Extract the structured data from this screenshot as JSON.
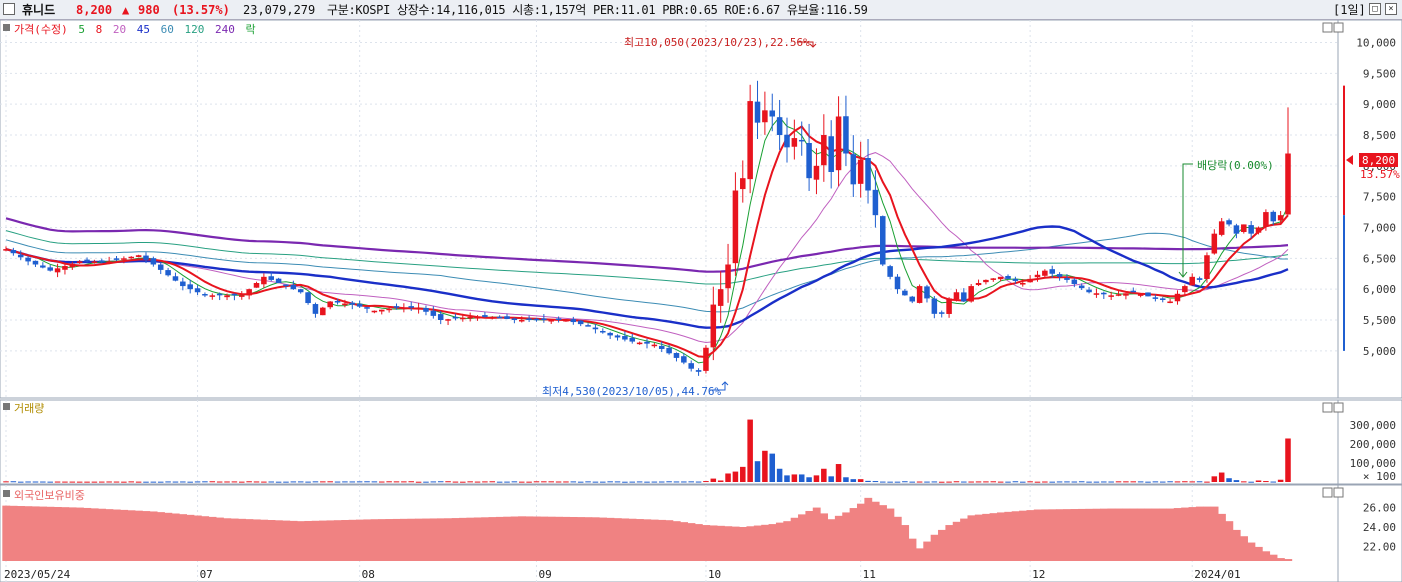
{
  "header": {
    "name": "휴니드",
    "price": "8,200",
    "arrow": "▲",
    "change": "980",
    "change_pct": "(13.57%)",
    "volume": "23,079,279",
    "info": "구분:KOSPI 상장수:14,116,015 시총:1,157억 PER:11.01 PBR:0.65 ROE:6.67 유보율:116.59",
    "period": "[1일]"
  },
  "colors": {
    "up": "#e8141e",
    "down": "#1f5fd0",
    "ma5": "#19a032",
    "ma20": "#c060c0",
    "ma45": "#1a2fc8",
    "ma240": "#7a28b0",
    "foreign": "#f08282"
  },
  "price_legend": [
    {
      "label": "가격(수정)",
      "color": "#e8141e"
    },
    {
      "label": "5",
      "color": "#19a032"
    },
    {
      "label": "8",
      "color": "#e8141e"
    },
    {
      "label": "20",
      "color": "#c060c0"
    },
    {
      "label": "45",
      "color": "#1a2fc8"
    },
    {
      "label": "60",
      "color": "#3c8cb4"
    },
    {
      "label": "120",
      "color": "#28a082"
    },
    {
      "label": "240",
      "color": "#7a28b0"
    },
    {
      "label": "락",
      "color": "#19a032"
    }
  ],
  "annotations": {
    "high": "최고10,050(2023/10/23),22.56%",
    "low": "최저4,530(2023/10/05),44.76%",
    "dividend": "배당락(0.00%)",
    "last_price": "8,200",
    "last_pct": "13.57%"
  },
  "volume_legend": "거래량",
  "foreign_legend": "외국인보유비중",
  "chart_data": [
    {
      "type": "candlestick",
      "title": "휴니드",
      "y_ticks": [
        5000,
        5500,
        6000,
        6500,
        7000,
        7500,
        8000,
        8500,
        9000,
        9500,
        10000
      ],
      "y_tick_labels": [
        "5,000",
        "5,500",
        "6,000",
        "6,500",
        "7,000",
        "7,500",
        "8,000",
        "8,500",
        "9,000",
        "9,500",
        "10,000"
      ],
      "ylim": [
        4300,
        10300
      ],
      "x_labels": [
        "2023/05/24",
        "07",
        "08",
        "09",
        "10",
        "11",
        "12",
        "2024/01"
      ],
      "x_label_index": [
        0,
        26,
        48,
        72,
        95,
        116,
        139,
        161
      ],
      "anchors_close": [
        [
          0,
          6650
        ],
        [
          3,
          6450
        ],
        [
          6,
          6300
        ],
        [
          10,
          6450
        ],
        [
          14,
          6450
        ],
        [
          18,
          6550
        ],
        [
          20,
          6400
        ],
        [
          24,
          6050
        ],
        [
          27,
          5900
        ],
        [
          29,
          5900
        ],
        [
          32,
          5900
        ],
        [
          35,
          6200
        ],
        [
          38,
          6050
        ],
        [
          40,
          5950
        ],
        [
          42,
          5600
        ],
        [
          44,
          5800
        ],
        [
          47,
          5750
        ],
        [
          50,
          5650
        ],
        [
          53,
          5700
        ],
        [
          56,
          5700
        ],
        [
          59,
          5500
        ],
        [
          63,
          5550
        ],
        [
          66,
          5550
        ],
        [
          69,
          5500
        ],
        [
          72,
          5500
        ],
        [
          76,
          5500
        ],
        [
          79,
          5400
        ],
        [
          82,
          5250
        ],
        [
          85,
          5150
        ],
        [
          88,
          5100
        ],
        [
          90,
          4960
        ],
        [
          92,
          4810
        ],
        [
          93,
          4710
        ],
        [
          94,
          4660
        ],
        [
          95,
          5050
        ],
        [
          96,
          5750
        ],
        [
          97,
          6000
        ],
        [
          98,
          6400
        ],
        [
          99,
          7600
        ],
        [
          100,
          7800
        ],
        [
          101,
          9050
        ],
        [
          102,
          8700
        ],
        [
          103,
          8900
        ],
        [
          104,
          8800
        ],
        [
          105,
          8500
        ],
        [
          106,
          8300
        ],
        [
          107,
          8450
        ],
        [
          108,
          8400
        ],
        [
          109,
          7800
        ],
        [
          110,
          8000
        ],
        [
          111,
          8500
        ],
        [
          112,
          7900
        ],
        [
          113,
          8800
        ],
        [
          114,
          8200
        ],
        [
          115,
          7700
        ],
        [
          116,
          8100
        ],
        [
          117,
          7600
        ],
        [
          118,
          7200
        ],
        [
          119,
          6400
        ],
        [
          120,
          6200
        ],
        [
          121,
          6000
        ],
        [
          122,
          5900
        ],
        [
          123,
          5800
        ],
        [
          124,
          6050
        ],
        [
          125,
          5850
        ],
        [
          126,
          5600
        ],
        [
          127,
          5600
        ],
        [
          128,
          5850
        ],
        [
          129,
          5950
        ],
        [
          130,
          5800
        ],
        [
          131,
          6050
        ],
        [
          133,
          6150
        ],
        [
          135,
          6200
        ],
        [
          138,
          6100
        ],
        [
          141,
          6300
        ],
        [
          144,
          6150
        ],
        [
          147,
          5950
        ],
        [
          150,
          5900
        ],
        [
          153,
          5950
        ],
        [
          156,
          5850
        ],
        [
          158,
          5800
        ],
        [
          160,
          6050
        ],
        [
          161,
          6200
        ],
        [
          162,
          6150
        ],
        [
          163,
          6550
        ],
        [
          164,
          6900
        ],
        [
          165,
          7100
        ],
        [
          166,
          7050
        ],
        [
          167,
          6900
        ],
        [
          168,
          7050
        ],
        [
          169,
          6900
        ],
        [
          170,
          7000
        ],
        [
          171,
          7250
        ],
        [
          172,
          7100
        ],
        [
          173,
          7200
        ],
        [
          174,
          8200
        ]
      ],
      "high": {
        "value": 10050,
        "date": "2023/10/23",
        "pct": 22.56
      },
      "low": {
        "value": 4530,
        "date": "2023/10/05",
        "pct": 44.76
      },
      "last": {
        "close": 8200,
        "change": 980,
        "change_pct": 13.57
      }
    },
    {
      "type": "bar",
      "title": "거래량",
      "y_ticks": [
        100,
        100000,
        200000,
        300000
      ],
      "y_tick_labels": [
        "× 100",
        "100,000",
        "200,000",
        "300,000"
      ],
      "ylim": [
        0,
        370000
      ],
      "spikes": [
        [
          95,
          5000
        ],
        [
          96,
          18000
        ],
        [
          97,
          8000
        ],
        [
          98,
          45000
        ],
        [
          99,
          55000
        ],
        [
          100,
          80000
        ],
        [
          101,
          330000
        ],
        [
          102,
          110000
        ],
        [
          103,
          165000
        ],
        [
          104,
          150000
        ],
        [
          105,
          70000
        ],
        [
          106,
          35000
        ],
        [
          107,
          40000
        ],
        [
          108,
          40000
        ],
        [
          109,
          25000
        ],
        [
          110,
          35000
        ],
        [
          111,
          70000
        ],
        [
          112,
          30000
        ],
        [
          113,
          95000
        ],
        [
          114,
          25000
        ],
        [
          115,
          15000
        ],
        [
          116,
          15000
        ],
        [
          117,
          6000
        ],
        [
          118,
          5000
        ],
        [
          122,
          4000
        ],
        [
          132,
          3000
        ],
        [
          164,
          30000
        ],
        [
          165,
          50000
        ],
        [
          166,
          20000
        ],
        [
          167,
          10000
        ],
        [
          170,
          8000
        ],
        [
          171,
          5000
        ],
        [
          173,
          12000
        ],
        [
          174,
          230000
        ]
      ]
    },
    {
      "type": "bar",
      "title": "외국인보유비중",
      "y_ticks": [
        22,
        24,
        26
      ],
      "y_tick_labels": [
        "22.00",
        "24.00",
        "26.00"
      ],
      "ylim": [
        20.5,
        27.5
      ],
      "anchors": [
        [
          0,
          26.2
        ],
        [
          10,
          26.0
        ],
        [
          20,
          25.6
        ],
        [
          30,
          24.9
        ],
        [
          40,
          24.6
        ],
        [
          50,
          24.8
        ],
        [
          60,
          24.9
        ],
        [
          70,
          25.1
        ],
        [
          80,
          25.0
        ],
        [
          90,
          24.7
        ],
        [
          95,
          24.2
        ],
        [
          100,
          24.0
        ],
        [
          104,
          24.3
        ],
        [
          106,
          24.6
        ],
        [
          110,
          26.0
        ],
        [
          112,
          24.8
        ],
        [
          114,
          25.5
        ],
        [
          116,
          26.4
        ],
        [
          117,
          27.0
        ],
        [
          118,
          26.6
        ],
        [
          120,
          25.9
        ],
        [
          122,
          24.2
        ],
        [
          123,
          22.8
        ],
        [
          124,
          21.8
        ],
        [
          126,
          23.2
        ],
        [
          128,
          24.2
        ],
        [
          131,
          25.2
        ],
        [
          135,
          25.5
        ],
        [
          140,
          25.8
        ],
        [
          150,
          25.9
        ],
        [
          158,
          25.9
        ],
        [
          162,
          26.1
        ],
        [
          164,
          26.1
        ],
        [
          166,
          24.6
        ],
        [
          167,
          23.7
        ],
        [
          169,
          22.4
        ],
        [
          171,
          21.5
        ],
        [
          173,
          20.8
        ],
        [
          174,
          20.7
        ]
      ]
    }
  ]
}
